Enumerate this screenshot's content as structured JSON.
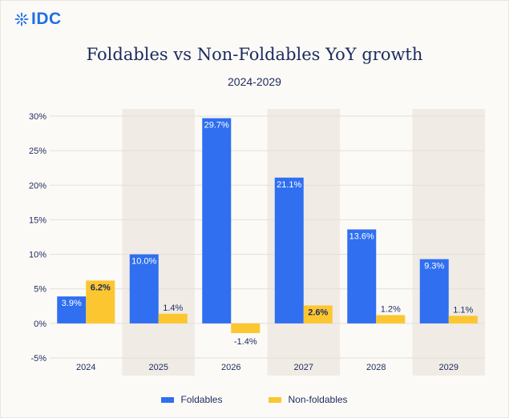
{
  "logo": {
    "text": "IDC"
  },
  "chart_data": {
    "type": "bar",
    "title": "Foldables vs Non-Foldables YoY growth",
    "subtitle": "2024-2029",
    "categories": [
      "2024",
      "2025",
      "2026",
      "2027",
      "2028",
      "2029"
    ],
    "series": [
      {
        "name": "Foldables",
        "color": "#2f6ff0",
        "values": [
          3.9,
          10.0,
          29.7,
          21.1,
          13.6,
          9.3
        ],
        "labels": [
          "3.9%",
          "10.0%",
          "29.7%",
          "21.1%",
          "13.6%",
          "9.3%"
        ]
      },
      {
        "name": "Non-foldables",
        "color": "#fcc630",
        "values": [
          6.2,
          1.4,
          -1.4,
          2.6,
          1.2,
          1.1
        ],
        "labels": [
          "6.2%",
          "1.4%",
          "-1.4%",
          "2.6%",
          "1.2%",
          "1.1%"
        ]
      }
    ],
    "y_ticks": [
      30,
      25,
      20,
      15,
      10,
      5,
      0,
      -5
    ],
    "y_tick_labels": [
      "30%",
      "25%",
      "20%",
      "15%",
      "10%",
      "5%",
      "0%",
      "-5%"
    ],
    "ylim": [
      -5,
      30
    ],
    "grid": true,
    "legend_position": "bottom-center"
  }
}
